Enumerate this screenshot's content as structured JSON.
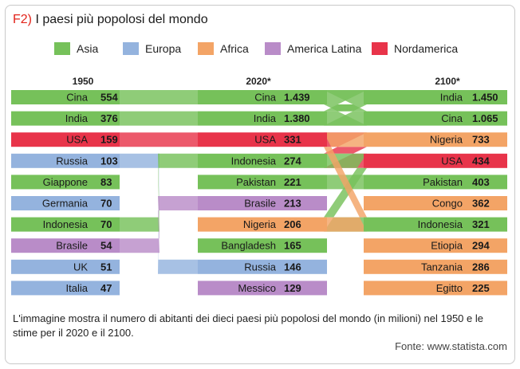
{
  "figure": {
    "tag": "F2)",
    "title": "I paesi più popolosi del mondo",
    "caption": "L'immagine mostra il numero di abitanti dei dieci paesi più popolosi del mondo (in milioni) nel 1950 e le stime per il 2020 e il 2100.",
    "source": "Fonte: www.statista.com"
  },
  "chart_data": {
    "type": "bump",
    "title": "I paesi più popolosi del mondo",
    "units": "milioni di abitanti",
    "legend": [
      {
        "region": "Asia",
        "color": "#76c15a"
      },
      {
        "region": "Europa",
        "color": "#94b3de"
      },
      {
        "region": "Africa",
        "color": "#f3a466"
      },
      {
        "region": "America Latina",
        "color": "#b98cc8"
      },
      {
        "region": "Nordamerica",
        "color": "#e8344a"
      }
    ],
    "legend_position": "top",
    "columns": [
      {
        "year": "1950",
        "rows": [
          {
            "country": "Cina",
            "value": "554",
            "region": "Asia"
          },
          {
            "country": "India",
            "value": "376",
            "region": "Asia"
          },
          {
            "country": "USA",
            "value": "159",
            "region": "Nordamerica"
          },
          {
            "country": "Russia",
            "value": "103",
            "region": "Europa"
          },
          {
            "country": "Giappone",
            "value": "83",
            "region": "Asia"
          },
          {
            "country": "Germania",
            "value": "70",
            "region": "Europa"
          },
          {
            "country": "Indonesia",
            "value": "70",
            "region": "Asia"
          },
          {
            "country": "Brasile",
            "value": "54",
            "region": "America Latina"
          },
          {
            "country": "UK",
            "value": "51",
            "region": "Europa"
          },
          {
            "country": "Italia",
            "value": "47",
            "region": "Europa"
          }
        ]
      },
      {
        "year": "2020*",
        "rows": [
          {
            "country": "Cina",
            "value": "1.439",
            "region": "Asia"
          },
          {
            "country": "India",
            "value": "1.380",
            "region": "Asia"
          },
          {
            "country": "USA",
            "value": "331",
            "region": "Nordamerica"
          },
          {
            "country": "Indonesia",
            "value": "274",
            "region": "Asia"
          },
          {
            "country": "Pakistan",
            "value": "221",
            "region": "Asia"
          },
          {
            "country": "Brasile",
            "value": "213",
            "region": "America Latina"
          },
          {
            "country": "Nigeria",
            "value": "206",
            "region": "Africa"
          },
          {
            "country": "Bangladesh",
            "value": "165",
            "region": "Asia"
          },
          {
            "country": "Russia",
            "value": "146",
            "region": "Europa"
          },
          {
            "country": "Messico",
            "value": "129",
            "region": "America Latina"
          }
        ]
      },
      {
        "year": "2100*",
        "rows": [
          {
            "country": "India",
            "value": "1.450",
            "region": "Asia"
          },
          {
            "country": "Cina",
            "value": "1.065",
            "region": "Asia"
          },
          {
            "country": "Nigeria",
            "value": "733",
            "region": "Africa"
          },
          {
            "country": "USA",
            "value": "434",
            "region": "Nordamerica"
          },
          {
            "country": "Pakistan",
            "value": "403",
            "region": "Asia"
          },
          {
            "country": "Congo",
            "value": "362",
            "region": "Africa"
          },
          {
            "country": "Indonesia",
            "value": "321",
            "region": "Asia"
          },
          {
            "country": "Etiopia",
            "value": "294",
            "region": "Africa"
          },
          {
            "country": "Tanzania",
            "value": "286",
            "region": "Africa"
          },
          {
            "country": "Egitto",
            "value": "225",
            "region": "Africa"
          }
        ]
      }
    ]
  }
}
